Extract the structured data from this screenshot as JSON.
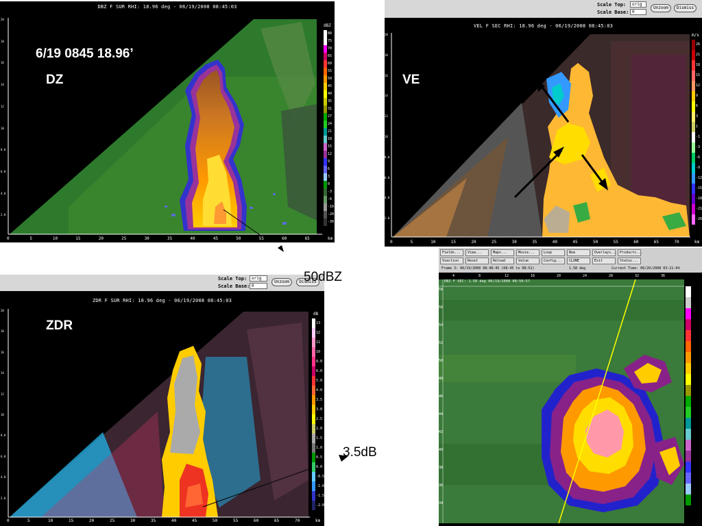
{
  "dz": {
    "title": "DBZ F SUR  RHI: 18.96 deg  -  06/19/2008 08:45:03",
    "heading": "6/19 0845 18.96’",
    "label": "DZ",
    "unit": "dBZ",
    "scale": [
      "80",
      "75",
      "70",
      "65",
      "60",
      "55",
      "50",
      "45",
      "40",
      "35",
      "31",
      "27",
      "24",
      "21",
      "18",
      "15",
      "12",
      "9",
      "6",
      "3",
      "0",
      "-3",
      "-6",
      "-10",
      "-20",
      "-30"
    ],
    "xticks": [
      "0",
      "5",
      "10",
      "15",
      "20",
      "25",
      "30",
      "35",
      "40",
      "45",
      "50",
      "55",
      "60",
      "65",
      "km"
    ],
    "yticks": [
      "20",
      "18",
      "16",
      "14",
      "12",
      "10",
      "8.0",
      "6.0",
      "4.0",
      "2.0"
    ],
    "scale_colors": [
      "#ffffff",
      "#ffffff",
      "#ff00ff",
      "#cc0066",
      "#ff3333",
      "#ff6600",
      "#ff9900",
      "#ffcc00",
      "#ffff00",
      "#cccc00",
      "#999900",
      "#00aa00",
      "#22cc22",
      "#009999",
      "#66cccc",
      "#cc66cc",
      "#993399",
      "#3333ff",
      "#6666ff",
      "#99ccff",
      "#009900",
      "#336633",
      "#669966",
      "#999999",
      "#555555",
      "#333333"
    ]
  },
  "ve": {
    "title": "VEL F SEC  RHI: 18.96 deg  -  06/19/2008 08:45:03",
    "label": "VE",
    "unit": "m/s",
    "scale_top_label": "Scale Top:",
    "scale_top_value": "orig",
    "scale_base_label": "Scale Base:",
    "scale_base_value": "0",
    "unzoom": "Unzoom",
    "dismiss": "Dismiss",
    "scale": [
      "26",
      "21",
      "18",
      "15",
      "12",
      "9",
      "6",
      "3",
      "1",
      "-1",
      "-3",
      "-6",
      "-9",
      "-12",
      "-15",
      "-18",
      "-21",
      "-26"
    ],
    "scale_colors": [
      "#990000",
      "#cc0000",
      "#ff3333",
      "#ff6666",
      "#ff9966",
      "#ffcc00",
      "#ffff00",
      "#ffee66",
      "#cccc66",
      "#ffffff",
      "#99ff99",
      "#00cc66",
      "#00cccc",
      "#3399ff",
      "#3333ff",
      "#6600cc",
      "#cc00cc",
      "#ff66ff"
    ],
    "xticks": [
      "0",
      "5",
      "10",
      "15",
      "20",
      "25",
      "30",
      "35",
      "40",
      "45",
      "50",
      "55",
      "60",
      "65",
      "70",
      "km"
    ],
    "yticks": [
      "20",
      "18",
      "16",
      "14",
      "12",
      "10",
      "8.0",
      "6.0",
      "4.0",
      "2.0"
    ]
  },
  "zdr": {
    "title": "ZDR F SUR  RHI: 18.96 deg  -  06/19/2008 08:45:03",
    "label": "ZDR",
    "unit": "dB",
    "scale_top_label": "Scale Top:",
    "scale_top_value": "orig",
    "scale_base_label": "Scale Base:",
    "scale_base_value": "0",
    "unzoom": "Unzoom",
    "dismiss": "Dismiss",
    "scale": [
      "13",
      "12",
      "11",
      "10",
      "8.0",
      "6.0",
      "5.0",
      "4.0",
      "3.5",
      "3.0",
      "2.5",
      "2.0",
      "1.5",
      "1.0",
      "0.5",
      "0.0",
      "-0.5",
      "-1.0",
      "-1.5",
      "-2.0"
    ],
    "scale_colors": [
      "#ffffff",
      "#ffccff",
      "#ff99cc",
      "#ff66aa",
      "#ff3388",
      "#cc0066",
      "#ff3333",
      "#ff6633",
      "#ff9900",
      "#ffcc00",
      "#ffff00",
      "#cccc66",
      "#aaaaaa",
      "#777777",
      "#009900",
      "#33cc66",
      "#66ccff",
      "#3399ff",
      "#3333cc",
      "#222266"
    ],
    "xticks": [
      "0",
      "5",
      "10",
      "15",
      "20",
      "25",
      "30",
      "35",
      "40",
      "45",
      "50",
      "55",
      "60",
      "65",
      "70",
      "km"
    ],
    "yticks": [
      "20",
      "18",
      "16",
      "14",
      "12",
      "10",
      "8.0",
      "6.0",
      "4.0",
      "2.0"
    ]
  },
  "annotations": {
    "dbz50": "50dBZ",
    "db35": "3.5dB"
  },
  "ppi": {
    "buttons_row1": [
      "Fields...",
      "View...",
      "Maps...",
      "Movie...",
      "Loop",
      "Now",
      "Overlays...",
      "Products..."
    ],
    "buttons_row2": [
      "Vsection",
      "Reset",
      "Reload",
      "Value",
      "Config...",
      "CLONE",
      "Exit",
      "Status..."
    ],
    "frame_info": "Frame 3: 06/19/2008 08:48:45   (08:45 to 08:52)",
    "elev_info": "1.58 deg",
    "current_time": "Current Time: 06/20/2008 03:21:04",
    "title": "DBZ F SEC: 1.58 deg 06/19/2008 08:50:57",
    "xticks": [
      "4",
      "8",
      "12",
      "16",
      "20",
      "24",
      "28",
      "32",
      "36"
    ],
    "yticks": [
      "58",
      "56",
      "54",
      "52",
      "50",
      "48",
      "46",
      "44",
      "42",
      "40",
      "38",
      "36",
      "34"
    ],
    "scale_colors": [
      "#ffffff",
      "#cccccc",
      "#ff00ff",
      "#cc0066",
      "#ff3333",
      "#ff6600",
      "#ff9900",
      "#ffcc00",
      "#ffff00",
      "#999900",
      "#00aa00",
      "#22cc22",
      "#009999",
      "#66cccc",
      "#cc66cc",
      "#993399",
      "#3333ff",
      "#6666ff",
      "#99ccff",
      "#009900"
    ]
  }
}
